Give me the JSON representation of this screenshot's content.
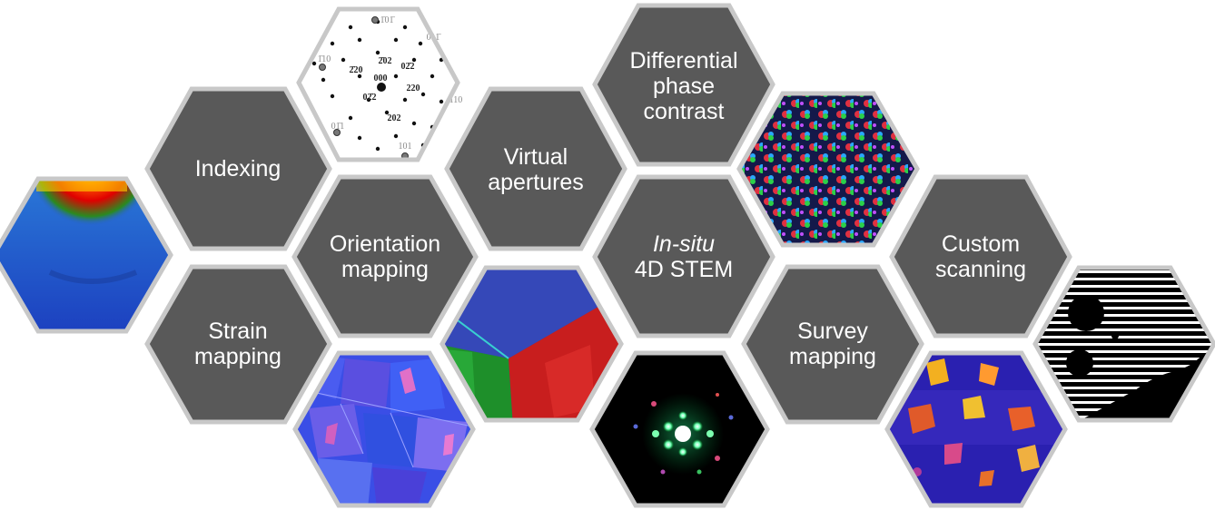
{
  "colors": {
    "tile_fill": "#595959",
    "tile_border": "#c8c8c8",
    "background": "#ffffff"
  },
  "text_tiles": {
    "indexing": "Indexing",
    "strain_mapping": [
      "Strain",
      "mapping"
    ],
    "orientation_mapping": [
      "Orientation",
      "mapping"
    ],
    "virtual_apertures": [
      "Virtual",
      "apertures"
    ],
    "differential_phase_contrast": [
      "Differential",
      "phase",
      "contrast"
    ],
    "in_situ": {
      "italic": "In-situ",
      "line2": "4D STEM"
    },
    "survey_mapping": [
      "Survey",
      "mapping"
    ],
    "custom_scanning": [
      "Custom",
      "scanning"
    ]
  },
  "image_tiles": [
    {
      "id": "strain-map-image",
      "depicts": "strain map (blue, green, red, yellow)"
    },
    {
      "id": "diffraction-pattern-image",
      "depicts": "indexed diffraction spot pattern"
    },
    {
      "id": "orientation-map-image",
      "depicts": "grain orientation map (blue, pink)"
    },
    {
      "id": "grain-boundary-image",
      "depicts": "orientation map with blue, green and red grains"
    },
    {
      "id": "dpc-image",
      "depicts": "colour-wheel differential phase contrast lattice"
    },
    {
      "id": "insitu-diffraction-image",
      "depicts": "green diffraction pattern on black"
    },
    {
      "id": "survey-map-image",
      "depicts": "survey map (purple, orange, yellow)"
    },
    {
      "id": "custom-scan-image",
      "depicts": "striped scan pattern with black regions"
    }
  ],
  "diffraction_labels": {
    "center": "000",
    "inner": [
      "2̄02",
      "02̄2",
      "2̄20",
      "220",
      "02̄2",
      "202"
    ],
    "outer": [
      "1̄01̄",
      "011̄",
      "1̄10",
      "110",
      "01̄1",
      "101"
    ]
  }
}
